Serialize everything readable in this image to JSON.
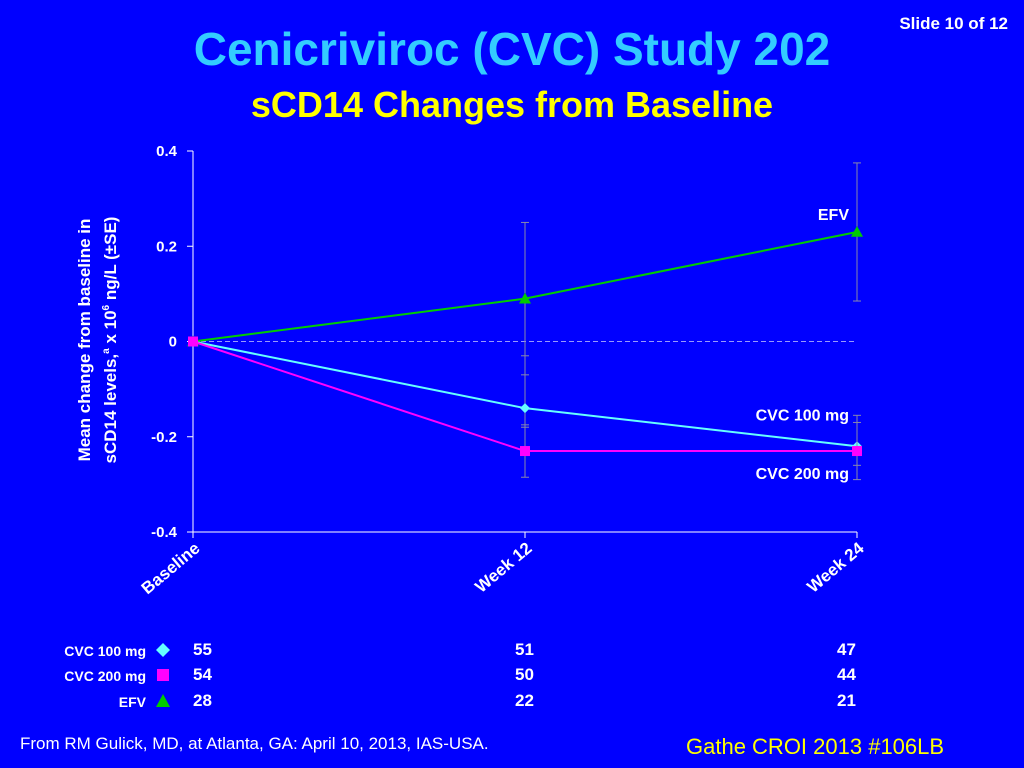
{
  "slide": {
    "counter": "Slide 10 of 12"
  },
  "header": {
    "title": "Cenicriviroc (CVC) Study 202",
    "subtitle": "sCD14 Changes from Baseline"
  },
  "chart_data": {
    "type": "line",
    "title": "sCD14 Changes from Baseline",
    "ylabel_line1": "Mean change from baseline in",
    "ylabel_line2_pre": "sCD14 levels,",
    "ylabel_line2_sup_a": "a",
    "ylabel_line2_mid": " x 10",
    "ylabel_line2_sup_6": "6",
    "ylabel_line2_post": " ng/L (±SE)",
    "xlabel": "",
    "categories": [
      "Baseline",
      "Week 12",
      "Week 24"
    ],
    "ylim": [
      -0.4,
      0.4
    ],
    "yticks": [
      0.4,
      0.2,
      0,
      -0.2,
      -0.4
    ],
    "ytick_labels": [
      "0.4",
      "0.2",
      "0",
      "-0.2",
      "-0.4"
    ],
    "series": [
      {
        "name": "EFV",
        "label": "EFV",
        "color": "#00CC00",
        "marker": "triangle",
        "values": [
          0,
          0.09,
          0.23
        ],
        "err_lo": [
          0,
          0.16,
          0.145
        ],
        "err_hi": [
          0,
          0.16,
          0.145
        ]
      },
      {
        "name": "CVC 100 mg",
        "label": "CVC 100 mg",
        "color": "#66FFFF",
        "marker": "diamond",
        "values": [
          0,
          -0.14,
          -0.22
        ],
        "err_lo": [
          0,
          0.04,
          0.04
        ],
        "err_hi": [
          0,
          0.11,
          0.065
        ]
      },
      {
        "name": "CVC 200 mg",
        "label": "CVC 200 mg",
        "color": "#FF00FF",
        "marker": "square",
        "values": [
          0,
          -0.23,
          -0.23
        ],
        "err_lo": [
          0,
          0.055,
          0.06
        ],
        "err_hi": [
          0,
          0.055,
          0.06
        ]
      }
    ],
    "reference_line": 0
  },
  "patient_table": {
    "rows": [
      {
        "label": "CVC 100 mg",
        "marker": "diamond",
        "color": "#66FFFF",
        "values": [
          "55",
          "51",
          "47"
        ]
      },
      {
        "label": "CVC 200 mg",
        "marker": "square",
        "color": "#FF00FF",
        "values": [
          "54",
          "50",
          "44"
        ]
      },
      {
        "label": "EFV",
        "marker": "triangle",
        "color": "#00CC00",
        "values": [
          "28",
          "22",
          "21"
        ]
      }
    ]
  },
  "footer": {
    "source": "From RM Gulick, MD, at Atlanta, GA: April 10, 2013, IAS-USA.",
    "reference": "Gathe CROI 2013 #106LB"
  }
}
